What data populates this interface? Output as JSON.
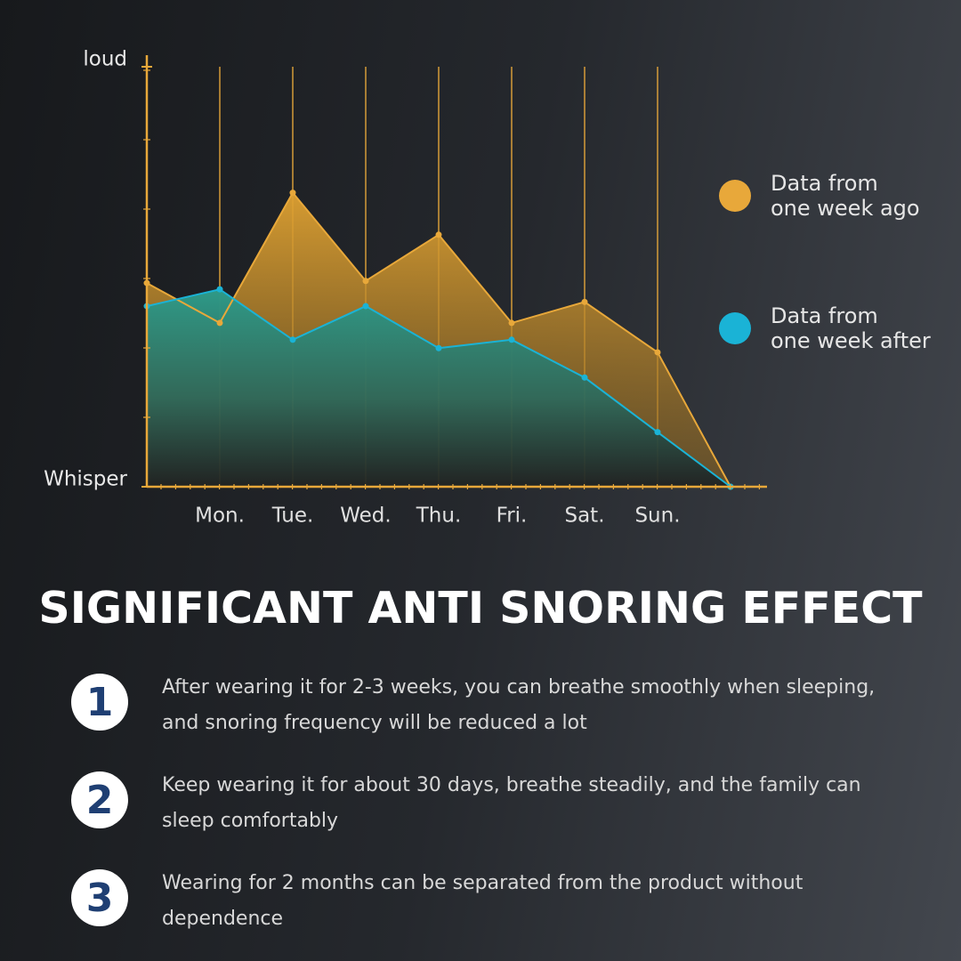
{
  "chart_data": {
    "type": "area",
    "categories": [
      null,
      "Mon.",
      "Tue.",
      "Wed.",
      "Thu.",
      "Fri.",
      "Sat.",
      "Sun.",
      null
    ],
    "series": [
      {
        "name": "Data from\none week ago",
        "color": "#e8a83a",
        "values": [
          48.5,
          39,
          70,
          49,
          60,
          39,
          44,
          32,
          0
        ]
      },
      {
        "name": "Data from\none week after",
        "color": "#1ab3d6",
        "values": [
          43,
          47,
          35,
          43,
          33,
          35,
          26,
          13,
          0
        ]
      }
    ],
    "ylim": [
      0,
      100
    ],
    "yticks": [
      {
        "value": 0,
        "label": "Whisper"
      },
      {
        "value": 100,
        "label": "loud"
      }
    ],
    "legend": "right"
  },
  "heading": "SIGNIFICANT ANTI SNORING EFFECT",
  "items": [
    {
      "number": "1",
      "text": "After wearing it for 2-3 weeks, you can breathe smoothly when sleeping, and snoring frequency will be reduced a lot"
    },
    {
      "number": "2",
      "text": "Keep wearing it for about 30 days, breathe steadily, and the family can sleep comfortably"
    },
    {
      "number": "3",
      "text": "Wearing for 2 months can be separated from the product without dependence"
    }
  ]
}
